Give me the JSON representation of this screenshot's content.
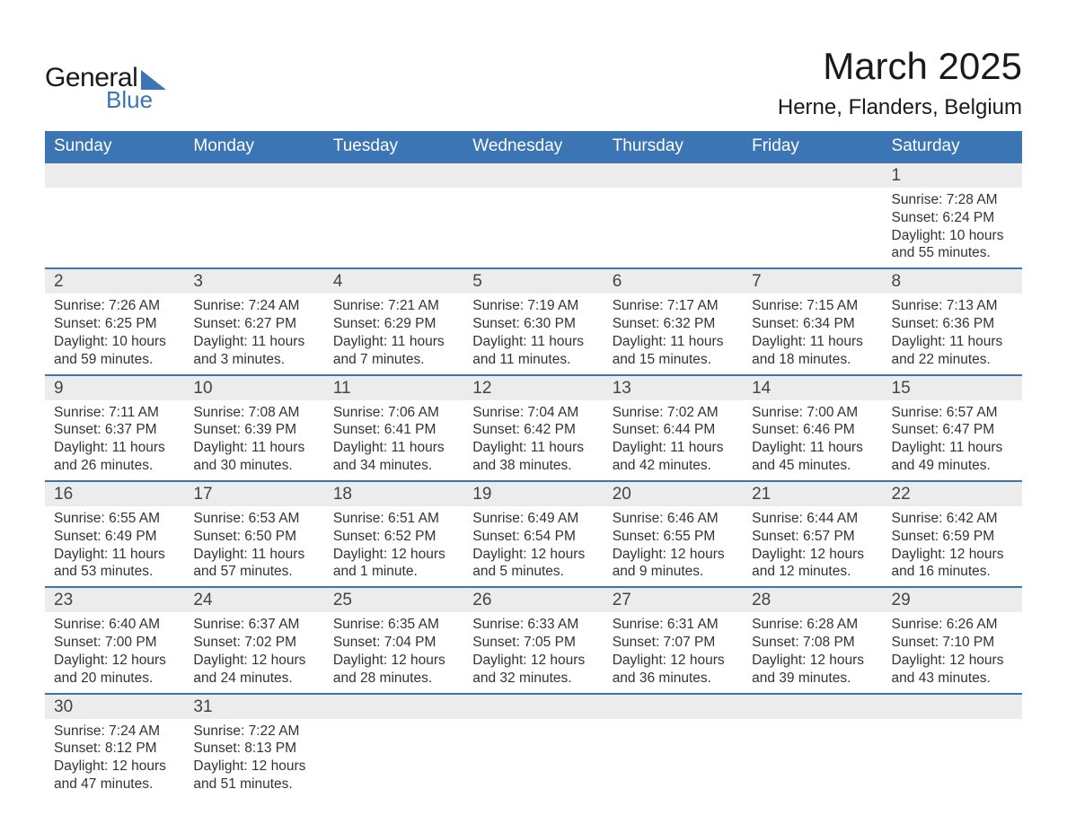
{
  "brand": {
    "word1": "General",
    "word2": "Blue",
    "accent_color": "#3b75b3"
  },
  "title": "March 2025",
  "location": "Herne, Flanders, Belgium",
  "day_headers": [
    "Sunday",
    "Monday",
    "Tuesday",
    "Wednesday",
    "Thursday",
    "Friday",
    "Saturday"
  ],
  "colors": {
    "header_bg": "#3b75b3",
    "header_text": "#ffffff",
    "row_divider": "#3b75b3",
    "daynum_bg": "#ececec",
    "body_text": "#333333",
    "page_bg": "#ffffff"
  },
  "typography": {
    "title_fontsize_pt": 32,
    "location_fontsize_pt": 18,
    "header_fontsize_pt": 14,
    "daynum_fontsize_pt": 14,
    "body_fontsize_pt": 12
  },
  "weeks": [
    [
      null,
      null,
      null,
      null,
      null,
      null,
      {
        "num": "1",
        "sunrise": "Sunrise: 7:28 AM",
        "sunset": "Sunset: 6:24 PM",
        "daylight": "Daylight: 10 hours and 55 minutes."
      }
    ],
    [
      {
        "num": "2",
        "sunrise": "Sunrise: 7:26 AM",
        "sunset": "Sunset: 6:25 PM",
        "daylight": "Daylight: 10 hours and 59 minutes."
      },
      {
        "num": "3",
        "sunrise": "Sunrise: 7:24 AM",
        "sunset": "Sunset: 6:27 PM",
        "daylight": "Daylight: 11 hours and 3 minutes."
      },
      {
        "num": "4",
        "sunrise": "Sunrise: 7:21 AM",
        "sunset": "Sunset: 6:29 PM",
        "daylight": "Daylight: 11 hours and 7 minutes."
      },
      {
        "num": "5",
        "sunrise": "Sunrise: 7:19 AM",
        "sunset": "Sunset: 6:30 PM",
        "daylight": "Daylight: 11 hours and 11 minutes."
      },
      {
        "num": "6",
        "sunrise": "Sunrise: 7:17 AM",
        "sunset": "Sunset: 6:32 PM",
        "daylight": "Daylight: 11 hours and 15 minutes."
      },
      {
        "num": "7",
        "sunrise": "Sunrise: 7:15 AM",
        "sunset": "Sunset: 6:34 PM",
        "daylight": "Daylight: 11 hours and 18 minutes."
      },
      {
        "num": "8",
        "sunrise": "Sunrise: 7:13 AM",
        "sunset": "Sunset: 6:36 PM",
        "daylight": "Daylight: 11 hours and 22 minutes."
      }
    ],
    [
      {
        "num": "9",
        "sunrise": "Sunrise: 7:11 AM",
        "sunset": "Sunset: 6:37 PM",
        "daylight": "Daylight: 11 hours and 26 minutes."
      },
      {
        "num": "10",
        "sunrise": "Sunrise: 7:08 AM",
        "sunset": "Sunset: 6:39 PM",
        "daylight": "Daylight: 11 hours and 30 minutes."
      },
      {
        "num": "11",
        "sunrise": "Sunrise: 7:06 AM",
        "sunset": "Sunset: 6:41 PM",
        "daylight": "Daylight: 11 hours and 34 minutes."
      },
      {
        "num": "12",
        "sunrise": "Sunrise: 7:04 AM",
        "sunset": "Sunset: 6:42 PM",
        "daylight": "Daylight: 11 hours and 38 minutes."
      },
      {
        "num": "13",
        "sunrise": "Sunrise: 7:02 AM",
        "sunset": "Sunset: 6:44 PM",
        "daylight": "Daylight: 11 hours and 42 minutes."
      },
      {
        "num": "14",
        "sunrise": "Sunrise: 7:00 AM",
        "sunset": "Sunset: 6:46 PM",
        "daylight": "Daylight: 11 hours and 45 minutes."
      },
      {
        "num": "15",
        "sunrise": "Sunrise: 6:57 AM",
        "sunset": "Sunset: 6:47 PM",
        "daylight": "Daylight: 11 hours and 49 minutes."
      }
    ],
    [
      {
        "num": "16",
        "sunrise": "Sunrise: 6:55 AM",
        "sunset": "Sunset: 6:49 PM",
        "daylight": "Daylight: 11 hours and 53 minutes."
      },
      {
        "num": "17",
        "sunrise": "Sunrise: 6:53 AM",
        "sunset": "Sunset: 6:50 PM",
        "daylight": "Daylight: 11 hours and 57 minutes."
      },
      {
        "num": "18",
        "sunrise": "Sunrise: 6:51 AM",
        "sunset": "Sunset: 6:52 PM",
        "daylight": "Daylight: 12 hours and 1 minute."
      },
      {
        "num": "19",
        "sunrise": "Sunrise: 6:49 AM",
        "sunset": "Sunset: 6:54 PM",
        "daylight": "Daylight: 12 hours and 5 minutes."
      },
      {
        "num": "20",
        "sunrise": "Sunrise: 6:46 AM",
        "sunset": "Sunset: 6:55 PM",
        "daylight": "Daylight: 12 hours and 9 minutes."
      },
      {
        "num": "21",
        "sunrise": "Sunrise: 6:44 AM",
        "sunset": "Sunset: 6:57 PM",
        "daylight": "Daylight: 12 hours and 12 minutes."
      },
      {
        "num": "22",
        "sunrise": "Sunrise: 6:42 AM",
        "sunset": "Sunset: 6:59 PM",
        "daylight": "Daylight: 12 hours and 16 minutes."
      }
    ],
    [
      {
        "num": "23",
        "sunrise": "Sunrise: 6:40 AM",
        "sunset": "Sunset: 7:00 PM",
        "daylight": "Daylight: 12 hours and 20 minutes."
      },
      {
        "num": "24",
        "sunrise": "Sunrise: 6:37 AM",
        "sunset": "Sunset: 7:02 PM",
        "daylight": "Daylight: 12 hours and 24 minutes."
      },
      {
        "num": "25",
        "sunrise": "Sunrise: 6:35 AM",
        "sunset": "Sunset: 7:04 PM",
        "daylight": "Daylight: 12 hours and 28 minutes."
      },
      {
        "num": "26",
        "sunrise": "Sunrise: 6:33 AM",
        "sunset": "Sunset: 7:05 PM",
        "daylight": "Daylight: 12 hours and 32 minutes."
      },
      {
        "num": "27",
        "sunrise": "Sunrise: 6:31 AM",
        "sunset": "Sunset: 7:07 PM",
        "daylight": "Daylight: 12 hours and 36 minutes."
      },
      {
        "num": "28",
        "sunrise": "Sunrise: 6:28 AM",
        "sunset": "Sunset: 7:08 PM",
        "daylight": "Daylight: 12 hours and 39 minutes."
      },
      {
        "num": "29",
        "sunrise": "Sunrise: 6:26 AM",
        "sunset": "Sunset: 7:10 PM",
        "daylight": "Daylight: 12 hours and 43 minutes."
      }
    ],
    [
      {
        "num": "30",
        "sunrise": "Sunrise: 7:24 AM",
        "sunset": "Sunset: 8:12 PM",
        "daylight": "Daylight: 12 hours and 47 minutes."
      },
      {
        "num": "31",
        "sunrise": "Sunrise: 7:22 AM",
        "sunset": "Sunset: 8:13 PM",
        "daylight": "Daylight: 12 hours and 51 minutes."
      },
      null,
      null,
      null,
      null,
      null
    ]
  ]
}
